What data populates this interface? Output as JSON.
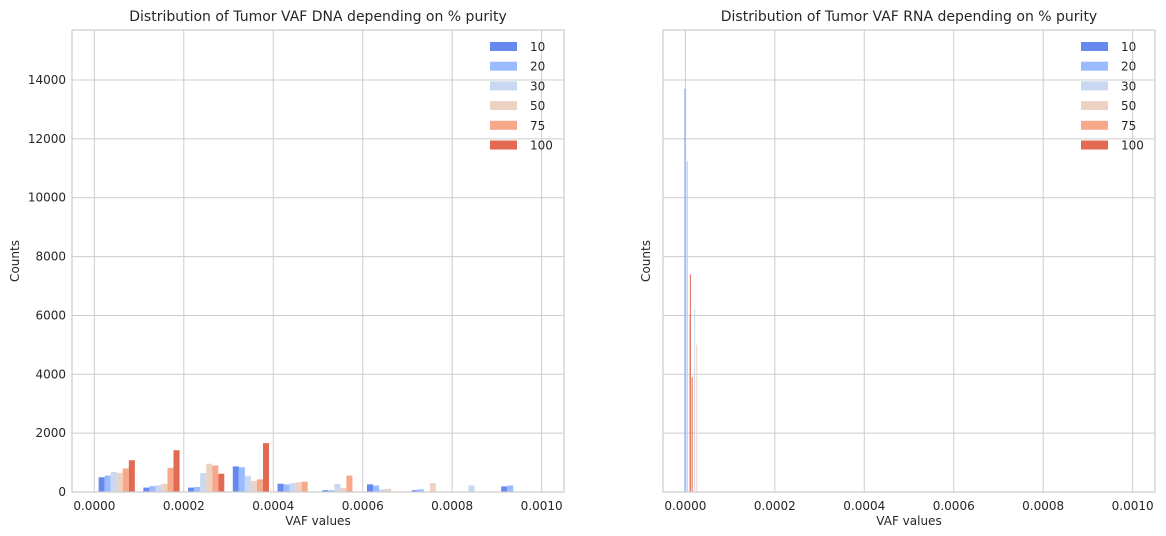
{
  "chart_data": [
    {
      "type": "bar",
      "title": "Distribution of Tumor VAF DNA depending on % purity",
      "xlabel": "VAF values",
      "ylabel": "Counts",
      "xlim": [
        -5e-05,
        0.00105
      ],
      "ylim": [
        0,
        15700
      ],
      "x_ticks": [
        0.0,
        0.0002,
        0.0004,
        0.0006,
        0.0008,
        0.001
      ],
      "x_tick_labels": [
        "0.0000",
        "0.0002",
        "0.0004",
        "0.0006",
        "0.0008",
        "0.0010"
      ],
      "y_ticks": [
        0,
        2000,
        4000,
        6000,
        8000,
        10000,
        12000,
        14000
      ],
      "y_tick_labels": [
        "0",
        "2000",
        "4000",
        "6000",
        "8000",
        "10000",
        "12000",
        "14000"
      ],
      "show_y_tick_labels": true,
      "grid": true,
      "legend_position": "top-right",
      "bar_width": 1.35e-05,
      "bin_centers": [
        5e-05,
        0.00015,
        0.00025,
        0.00035,
        0.00045,
        0.00055,
        0.00065,
        0.00075,
        0.00085,
        0.00095
      ],
      "series": [
        {
          "name": "10",
          "values": [
            500,
            150,
            150,
            870,
            280,
            60,
            260,
            60,
            0,
            190
          ]
        },
        {
          "name": "20",
          "values": [
            560,
            200,
            170,
            840,
            260,
            60,
            220,
            90,
            0,
            220
          ]
        },
        {
          "name": "30",
          "values": [
            680,
            230,
            640,
            550,
            300,
            270,
            90,
            0,
            220,
            0
          ]
        },
        {
          "name": "50",
          "values": [
            650,
            280,
            960,
            380,
            330,
            140,
            110,
            300,
            0,
            0
          ]
        },
        {
          "name": "75",
          "values": [
            800,
            820,
            900,
            430,
            350,
            560,
            0,
            0,
            0,
            0
          ]
        },
        {
          "name": "100",
          "values": [
            1080,
            1420,
            620,
            1660,
            0,
            0,
            0,
            0,
            0,
            0
          ]
        }
      ]
    },
    {
      "type": "bar",
      "title": "Distribution of Tumor VAF RNA depending on % purity",
      "xlabel": "VAF values",
      "ylabel": "Counts",
      "xlim": [
        -5e-05,
        0.00105
      ],
      "ylim": [
        0,
        15700
      ],
      "x_ticks": [
        0.0,
        0.0002,
        0.0004,
        0.0006,
        0.0008,
        0.001
      ],
      "x_tick_labels": [
        "0.0000",
        "0.0002",
        "0.0004",
        "0.0006",
        "0.0008",
        "0.0010"
      ],
      "y_ticks": [
        0,
        2000,
        4000,
        6000,
        8000,
        10000,
        12000,
        14000
      ],
      "y_tick_labels": [],
      "show_y_tick_labels": false,
      "grid": true,
      "legend_position": "top-right",
      "bar_width": 8e-07,
      "bin_centers": [
        5e-07,
        4.5e-06,
        8.5e-06,
        1.25e-05,
        1.65e-05,
        2.05e-05,
        2.45e-05
      ],
      "series": [
        {
          "name": "10",
          "values": [
            13700,
            0,
            0,
            0,
            0,
            0,
            0
          ]
        },
        {
          "name": "20",
          "values": [
            13650,
            11200,
            0,
            0,
            0,
            0,
            0
          ]
        },
        {
          "name": "30",
          "values": [
            0,
            11250,
            0,
            0,
            0,
            6200,
            0
          ]
        },
        {
          "name": "50",
          "values": [
            0,
            0,
            6000,
            0,
            0,
            0,
            5000
          ]
        },
        {
          "name": "75",
          "values": [
            0,
            0,
            5800,
            0,
            0,
            0,
            0
          ]
        },
        {
          "name": "100",
          "values": [
            0,
            0,
            7400,
            3900,
            0,
            0,
            0
          ]
        }
      ]
    }
  ],
  "colors": {
    "series": [
      "#6788ee",
      "#9abbff",
      "#c9d7f0",
      "#edd1c2",
      "#f7a889",
      "#e26952"
    ],
    "grid": "#cccccc",
    "axis": "#cccccc",
    "text": "#262626"
  }
}
